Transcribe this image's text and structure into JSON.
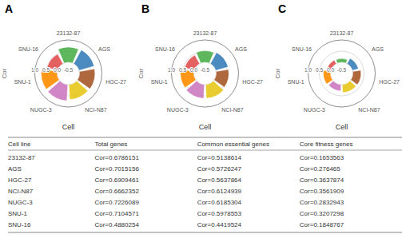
{
  "chart_data": [
    {
      "type": "polar_bar",
      "title": "A",
      "x_label": "Cell",
      "y_label": "Cor",
      "categories": [
        "23132-87",
        "AGS",
        "HGC-27",
        "NCI-N87",
        "NUGC-3",
        "SNU-1",
        "SNU-16"
      ],
      "values": [
        0.6786151,
        0.7015156,
        0.6909461,
        0.6662352,
        0.7226089,
        0.7104571,
        0.4880254
      ],
      "colors": [
        "#4daf4a",
        "#377eb8",
        "#a65628",
        "#e6c619",
        "#cc79c0",
        "#ff8c00",
        "#e05050"
      ],
      "ylim": [
        -0.5,
        1.0
      ],
      "yticks": [
        -0.5,
        {
          "value": 0,
          "label": "0.0"
        },
        0.5,
        {
          "value": 1,
          "label": "1.0"
        }
      ],
      "grid": true
    },
    {
      "type": "polar_bar",
      "title": "B",
      "x_label": "Cell",
      "y_label": "Cor",
      "categories": [
        "23132-87",
        "AGS",
        "HGC-27",
        "NCI-N87",
        "NUGC-3",
        "SNU-1",
        "SNU-16"
      ],
      "values": [
        0.5138614,
        0.5726247,
        0.5637864,
        0.6124939,
        0.6185304,
        0.5978553,
        0.4419524
      ],
      "colors": [
        "#4daf4a",
        "#377eb8",
        "#a65628",
        "#e6c619",
        "#cc79c0",
        "#ff8c00",
        "#e05050"
      ],
      "ylim": [
        -0.5,
        1.0
      ],
      "yticks": [
        -0.5,
        {
          "value": 0,
          "label": "0.0"
        },
        0.5,
        {
          "value": 1,
          "label": "1.0"
        }
      ],
      "grid": true
    },
    {
      "type": "polar_bar",
      "title": "C",
      "x_label": "Cell",
      "y_label": "Cor",
      "categories": [
        "23132-87",
        "AGS",
        "HGC-27",
        "NCI-N87",
        "NUGC-3",
        "SNU-1",
        "SNU-16"
      ],
      "values": [
        0.1653563,
        0.276465,
        0.3637874,
        0.3561909,
        0.2832943,
        0.3207298,
        0.1848767
      ],
      "colors": [
        "#4daf4a",
        "#377eb8",
        "#a65628",
        "#e6c619",
        "#cc79c0",
        "#ff8c00",
        "#e05050"
      ],
      "ylim": [
        -0.5,
        1.0
      ],
      "yticks": [
        -0.5,
        {
          "value": 0,
          "label": "0.0"
        },
        0.5,
        {
          "value": 1,
          "label": "1.0"
        }
      ],
      "grid": true
    },
    {
      "type": "table",
      "x_label": "Cell line",
      "categories": [
        "23132-87",
        "AGS",
        "HGC-27",
        "NCI-N87",
        "NUGC-3",
        "SNU-1",
        "SNU-16"
      ],
      "series": [
        {
          "name": "Total genes",
          "values": [
            0.6786151,
            0.7015156,
            0.6909461,
            0.6662352,
            0.7226089,
            0.7104571,
            0.4880254
          ],
          "value_labels": [
            "Cor=0.6786151",
            "Cor=0.7015156",
            "Cor=0.6909461",
            "Cor=0.6662352",
            "Cor=0.7226089",
            "Cor=0.7104571",
            "Cor=0.4880254"
          ]
        },
        {
          "name": "Common essential genes",
          "values": [
            0.5138614,
            0.5726247,
            0.5637864,
            0.6124939,
            0.6185304,
            0.5978553,
            0.4419524
          ],
          "value_labels": [
            "Cor=0.5138614",
            "Cor=0.5726247",
            "Cor=0.5637864",
            "Cor=0.6124939",
            "Cor=0.6185304",
            "Cor=0.5978553",
            "Cor=0.4419524"
          ]
        },
        {
          "name": "Core fitness genes",
          "values": [
            0.1653563,
            0.276465,
            0.3637874,
            0.3561909,
            0.2832943,
            0.3207298,
            0.1848767
          ],
          "value_labels": [
            "Cor=0.1653563",
            "Cor=0.276465",
            "Cor=0.3637874",
            "Cor=0.3561909",
            "Cor=0.2832943",
            "Cor=0.3207298",
            "Cor=0.1848767"
          ]
        }
      ]
    }
  ]
}
